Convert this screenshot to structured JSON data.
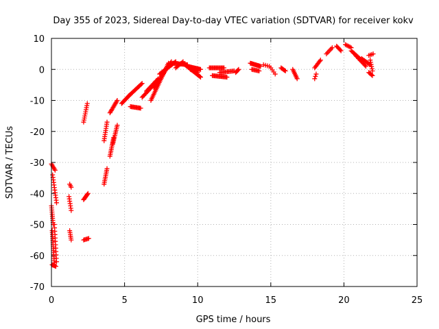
{
  "chart_data": {
    "type": "scatter",
    "title": "Day 355 of 2023, Sidereal Day-to-day VTEC variation (SDTVAR) for receiver kokv",
    "xlabel": "GPS time / hours",
    "ylabel": "SDTVAR / TECUs",
    "xlim": [
      0,
      25
    ],
    "ylim": [
      -70,
      10
    ],
    "xticks": [
      0,
      5,
      10,
      15,
      20,
      25
    ],
    "yticks": [
      -70,
      -60,
      -50,
      -40,
      -30,
      -20,
      -10,
      0,
      10
    ],
    "grid": true,
    "marker": "plus",
    "color": "#ff0000",
    "series": [
      {
        "name": "SDTVAR",
        "segments": [
          {
            "x0": 0.0,
            "y0": -30.5,
            "x1": 0.25,
            "y1": -32.5,
            "n": 6
          },
          {
            "x0": 0.08,
            "y0": -34.0,
            "x1": 0.35,
            "y1": -43.0,
            "n": 12
          },
          {
            "x0": 0.0,
            "y0": -44.0,
            "x1": 0.12,
            "y1": -50.0,
            "n": 10
          },
          {
            "x0": 0.05,
            "y0": -52.0,
            "x1": 0.2,
            "y1": -63.0,
            "n": 18
          },
          {
            "x0": 0.05,
            "y0": -63.0,
            "x1": 0.3,
            "y1": -63.5,
            "n": 6
          },
          {
            "x0": 0.2,
            "y0": -50.0,
            "x1": 0.35,
            "y1": -62.0,
            "n": 12
          },
          {
            "x0": 1.25,
            "y0": -37.0,
            "x1": 1.35,
            "y1": -38.0,
            "n": 3
          },
          {
            "x0": 1.2,
            "y0": -41.0,
            "x1": 1.35,
            "y1": -45.5,
            "n": 7
          },
          {
            "x0": 1.25,
            "y0": -52.0,
            "x1": 1.35,
            "y1": -55.0,
            "n": 6
          },
          {
            "x0": 2.2,
            "y0": -17.0,
            "x1": 2.45,
            "y1": -11.0,
            "n": 10
          },
          {
            "x0": 2.2,
            "y0": -42.0,
            "x1": 2.5,
            "y1": -40.0,
            "n": 8
          },
          {
            "x0": 2.2,
            "y0": -55.0,
            "x1": 2.55,
            "y1": -54.5,
            "n": 6
          },
          {
            "x0": 3.6,
            "y0": -23.0,
            "x1": 3.8,
            "y1": -17.0,
            "n": 10
          },
          {
            "x0": 3.6,
            "y0": -37.0,
            "x1": 3.8,
            "y1": -32.0,
            "n": 10
          },
          {
            "x0": 4.0,
            "y0": -14.0,
            "x1": 4.5,
            "y1": -10.0,
            "n": 12
          },
          {
            "x0": 4.0,
            "y0": -28.0,
            "x1": 4.25,
            "y1": -22.0,
            "n": 12
          },
          {
            "x0": 4.2,
            "y0": -24.0,
            "x1": 4.5,
            "y1": -18.0,
            "n": 12
          },
          {
            "x0": 4.8,
            "y0": -11.0,
            "x1": 5.4,
            "y1": -8.0,
            "n": 14
          },
          {
            "x0": 5.3,
            "y0": -8.5,
            "x1": 6.2,
            "y1": -4.5,
            "n": 16
          },
          {
            "x0": 5.4,
            "y0": -12.0,
            "x1": 6.1,
            "y1": -12.5,
            "n": 12
          },
          {
            "x0": 6.2,
            "y0": -9.0,
            "x1": 7.0,
            "y1": -5.0,
            "n": 14
          },
          {
            "x0": 6.5,
            "y0": -7.0,
            "x1": 7.3,
            "y1": -3.0,
            "n": 14
          },
          {
            "x0": 6.8,
            "y0": -10.0,
            "x1": 8.0,
            "y1": 2.0,
            "n": 26
          },
          {
            "x0": 7.0,
            "y0": -6.0,
            "x1": 8.2,
            "y1": 2.5,
            "n": 24
          },
          {
            "x0": 7.4,
            "y0": -1.5,
            "x1": 8.5,
            "y1": 2.5,
            "n": 20
          },
          {
            "x0": 8.3,
            "y0": 2.0,
            "x1": 9.3,
            "y1": 1.5,
            "n": 18
          },
          {
            "x0": 8.5,
            "y0": 0.5,
            "x1": 9.0,
            "y1": 2.5,
            "n": 8
          },
          {
            "x0": 9.0,
            "y0": 2.0,
            "x1": 10.2,
            "y1": -2.5,
            "n": 22
          },
          {
            "x0": 9.3,
            "y0": 1.0,
            "x1": 10.2,
            "y1": 0.0,
            "n": 18
          },
          {
            "x0": 9.5,
            "y0": 0.0,
            "x1": 10.0,
            "y1": -1.0,
            "n": 10
          },
          {
            "x0": 10.8,
            "y0": 0.5,
            "x1": 11.8,
            "y1": 0.5,
            "n": 16
          },
          {
            "x0": 11.0,
            "y0": -2.0,
            "x1": 12.0,
            "y1": -2.5,
            "n": 16
          },
          {
            "x0": 11.5,
            "y0": -1.0,
            "x1": 12.5,
            "y1": -0.5,
            "n": 14
          },
          {
            "x0": 12.6,
            "y0": -1.0,
            "x1": 12.8,
            "y1": 0.0,
            "n": 5
          },
          {
            "x0": 13.6,
            "y0": 2.0,
            "x1": 14.3,
            "y1": 1.0,
            "n": 14
          },
          {
            "x0": 13.7,
            "y0": 0.0,
            "x1": 14.2,
            "y1": -0.5,
            "n": 8
          },
          {
            "x0": 14.5,
            "y0": 1.5,
            "x1": 14.9,
            "y1": 1.0,
            "n": 4
          },
          {
            "x0": 15.0,
            "y0": 0.5,
            "x1": 15.3,
            "y1": -1.5,
            "n": 4
          },
          {
            "x0": 15.7,
            "y0": 0.5,
            "x1": 16.0,
            "y1": -0.5,
            "n": 6
          },
          {
            "x0": 16.5,
            "y0": 0.0,
            "x1": 16.8,
            "y1": -3.0,
            "n": 8
          },
          {
            "x0": 18.0,
            "y0": -3.0,
            "x1": 18.1,
            "y1": -1.5,
            "n": 3
          },
          {
            "x0": 18.0,
            "y0": 0.5,
            "x1": 18.4,
            "y1": 3.0,
            "n": 8
          },
          {
            "x0": 18.8,
            "y0": 5.0,
            "x1": 19.2,
            "y1": 7.0,
            "n": 6
          },
          {
            "x0": 19.5,
            "y0": 7.5,
            "x1": 19.8,
            "y1": 6.0,
            "n": 6
          },
          {
            "x0": 20.1,
            "y0": 8.0,
            "x1": 20.5,
            "y1": 7.0,
            "n": 6
          },
          {
            "x0": 20.5,
            "y0": 6.0,
            "x1": 21.2,
            "y1": 3.0,
            "n": 12
          },
          {
            "x0": 20.8,
            "y0": 4.5,
            "x1": 21.5,
            "y1": 1.0,
            "n": 12
          },
          {
            "x0": 21.2,
            "y0": 3.5,
            "x1": 21.8,
            "y1": 1.5,
            "n": 10
          },
          {
            "x0": 21.7,
            "y0": 4.5,
            "x1": 22.0,
            "y1": 5.0,
            "n": 4
          },
          {
            "x0": 21.8,
            "y0": 3.0,
            "x1": 21.95,
            "y1": -0.5,
            "n": 6
          },
          {
            "x0": 21.7,
            "y0": -1.0,
            "x1": 21.95,
            "y1": -2.0,
            "n": 5
          }
        ]
      }
    ]
  }
}
